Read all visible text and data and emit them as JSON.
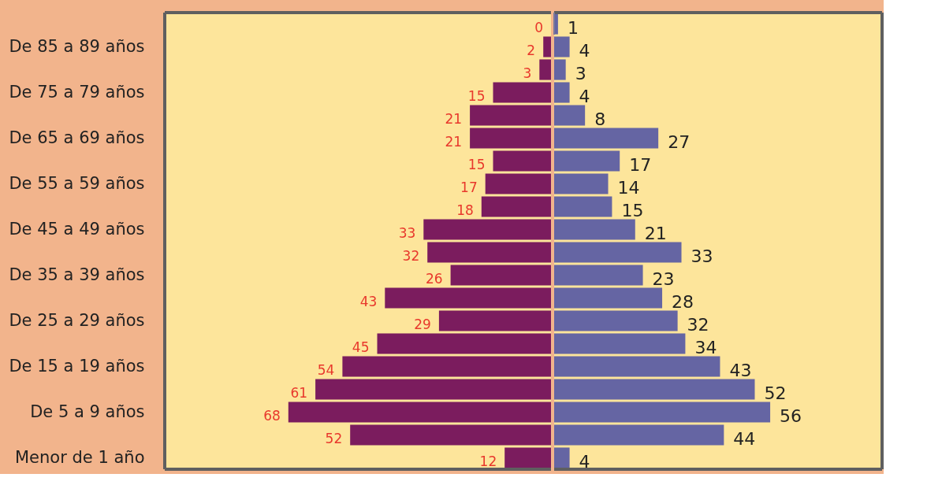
{
  "chart_data": [
    {
      "type": "bar",
      "orientation": "horizontal",
      "categories": [
        null,
        "De 85 a 89 años",
        null,
        "De 75 a 79 años",
        null,
        "De 65 a 69 años",
        null,
        "De 55 a 59 años",
        null,
        "De 45 a 49 años",
        null,
        "De 35 a 39 años",
        null,
        "De 25 a 29 años",
        null,
        "De 15 a 19 años",
        null,
        "De 5 a 9 años",
        null,
        "Menor de 1 año"
      ],
      "series": [
        {
          "color": "#7b1c5e",
          "values": [
            0,
            2,
            3,
            15,
            21,
            21,
            15,
            17,
            18,
            33,
            32,
            26,
            43,
            29,
            45,
            54,
            61,
            68,
            52,
            12
          ]
        }
      ],
      "xlim": [
        100,
        0
      ],
      "tick_labels": "y",
      "data_labels": true
    },
    {
      "type": "bar",
      "orientation": "horizontal",
      "categories": [
        null,
        null,
        null,
        null,
        null,
        null,
        null,
        null,
        null,
        null,
        null,
        null,
        null,
        null,
        null,
        null,
        null,
        null,
        null,
        null
      ],
      "series": [
        {
          "color": "#6565a3",
          "values": [
            1,
            4,
            3,
            4,
            8,
            27,
            17,
            14,
            15,
            21,
            33,
            23,
            28,
            32,
            34,
            43,
            52,
            56,
            44,
            4
          ]
        }
      ],
      "xlim": [
        0,
        85
      ],
      "tick_labels": false,
      "data_labels": true
    }
  ]
}
